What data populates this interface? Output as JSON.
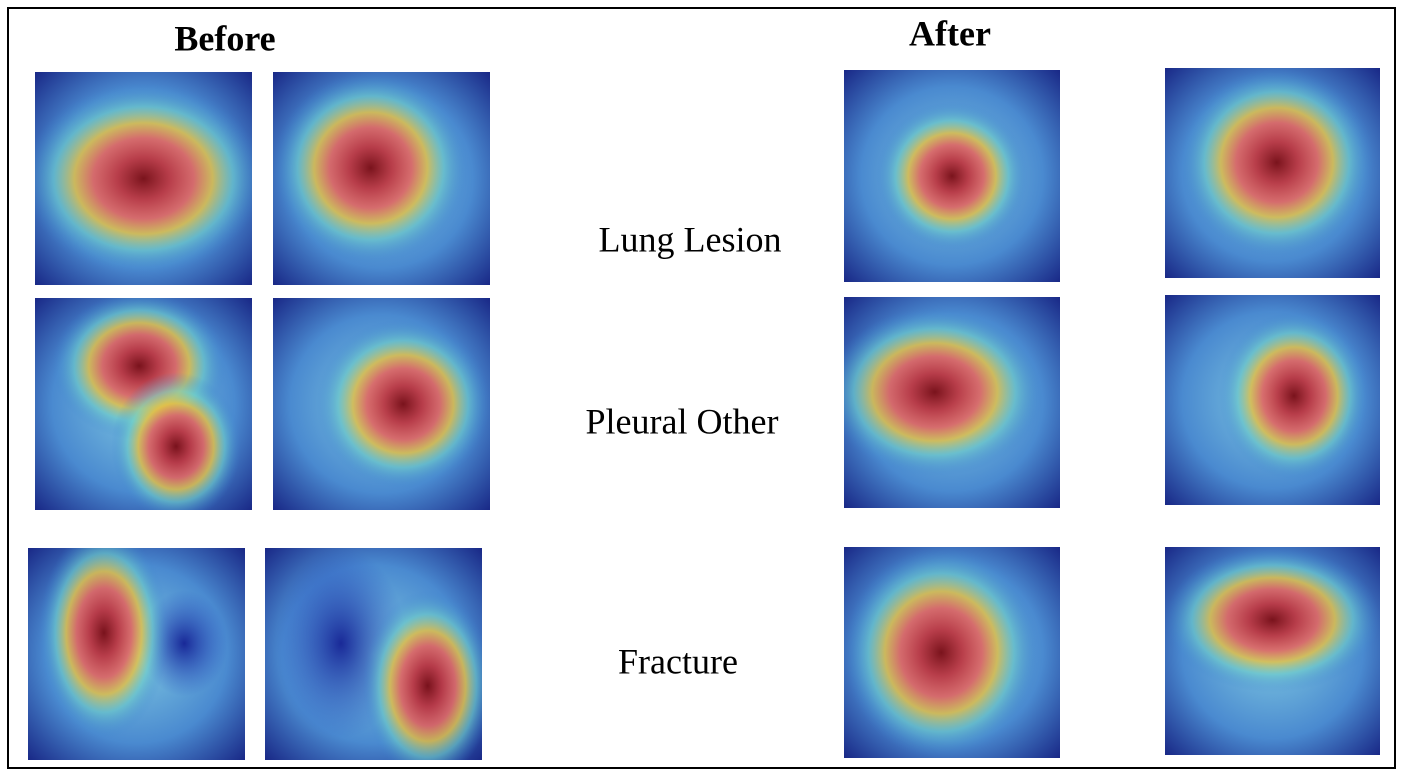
{
  "headers": {
    "before": "Before",
    "after": "After"
  },
  "rows": [
    {
      "label": "Lung Lesion"
    },
    {
      "label": "Pleural Other"
    },
    {
      "label": "Fracture"
    }
  ]
}
